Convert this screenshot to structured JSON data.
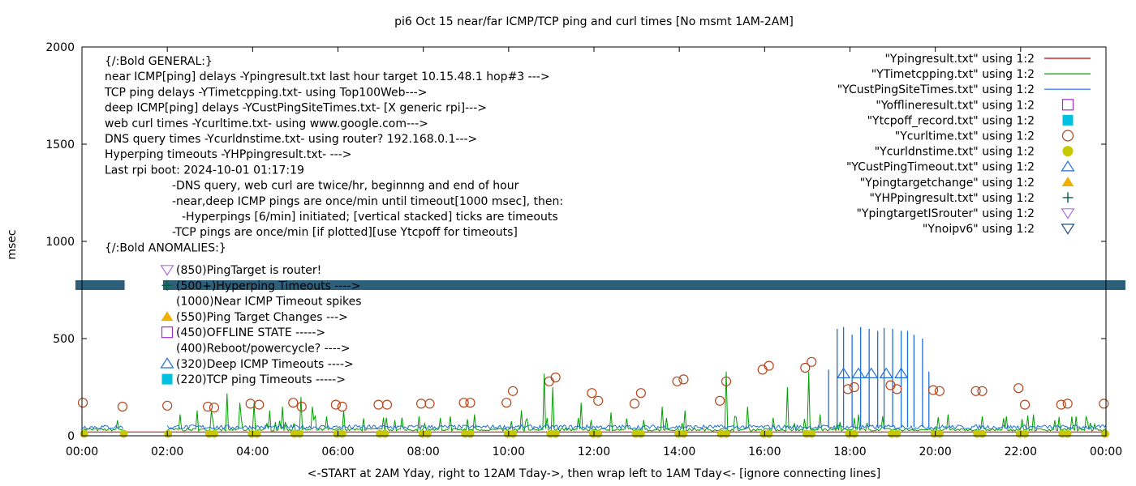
{
  "chart_data": {
    "type": "line",
    "title": "pi6 Oct 15  near/far ICMP/TCP ping and curl times [No msmt 1AM-2AM]",
    "xlabel": "<-START at 2AM Yday, right to 12AM Tday->, then wrap left to 1AM Tday<- [ignore connecting lines]",
    "ylabel": "msec",
    "xlim": [
      0,
      24
    ],
    "ylim": [
      0,
      2000
    ],
    "x_ticks": [
      {
        "value": 0,
        "label": "00:00"
      },
      {
        "value": 2,
        "label": "02:00"
      },
      {
        "value": 4,
        "label": "04:00"
      },
      {
        "value": 6,
        "label": "06:00"
      },
      {
        "value": 8,
        "label": "08:00"
      },
      {
        "value": 10,
        "label": "10:00"
      },
      {
        "value": 12,
        "label": "12:00"
      },
      {
        "value": 14,
        "label": "14:00"
      },
      {
        "value": 16,
        "label": "16:00"
      },
      {
        "value": 18,
        "label": "18:00"
      },
      {
        "value": 20,
        "label": "20:00"
      },
      {
        "value": 22,
        "label": "22:00"
      },
      {
        "value": 24,
        "label": "00:00"
      }
    ],
    "y_ticks": [
      {
        "value": 0,
        "label": "0"
      },
      {
        "value": 500,
        "label": "500"
      },
      {
        "value": 1000,
        "label": "1000"
      },
      {
        "value": 1500,
        "label": "1500"
      },
      {
        "value": 2000,
        "label": "2000"
      }
    ],
    "grid": false,
    "legend_position": "top-right",
    "legend": [
      {
        "label": "\"Ypingresult.txt\" using 1:2",
        "style": "line",
        "color": "#c00000"
      },
      {
        "label": "\"YTimetcpping.txt\" using 1:2",
        "style": "line",
        "color": "#00a000"
      },
      {
        "label": "\"YCustPingSiteTimes.txt\" using 1:2",
        "style": "line",
        "color": "#1f6fd8"
      },
      {
        "label": "\"Yofflineresult.txt\" using 1:2",
        "style": "open-square",
        "color": "#9b30d0"
      },
      {
        "label": "\"Ytcpoff_record.txt\" using 1:2",
        "style": "filled-square",
        "color": "#00c0e0"
      },
      {
        "label": "\"Ycurltime.txt\" using 1:2",
        "style": "open-circle",
        "color": "#b5451b"
      },
      {
        "label": "\"Ycurldnstime.txt\" using 1:2",
        "style": "filled-circle",
        "color": "#c8c800"
      },
      {
        "label": "\"YCustPingTimeout.txt\" using 1:2",
        "style": "open-triangle-up",
        "color": "#1f6fd8"
      },
      {
        "label": "\"Ypingtargetchange\" using 1:2",
        "style": "filled-triangle-up",
        "color": "#f0b000"
      },
      {
        "label": "\"YHPpingresult.txt\" using 1:2",
        "style": "plus",
        "color": "#006040"
      },
      {
        "label": "\"YpingtargetISrouter\" using 1:2",
        "style": "open-triangle-down",
        "color": "#b070e0"
      },
      {
        "label": "\"Ynoipv6\" using 1:2",
        "style": "open-triangle-down",
        "color": "#1a4a7a"
      }
    ],
    "annotation_lines": [
      "{/:Bold GENERAL:}",
      "near ICMP[ping] delays -Ypingresult.txt last hour target 10.15.48.1 hop#3 --->",
      "TCP ping delays -YTimetcpping.txt- using Top100Web--->",
      "deep ICMP[ping] delays -YCustPingSiteTimes.txt- [X generic rpi]--->",
      "web curl times -Ycurltime.txt- using www.google.com--->",
      "DNS query times -Ycurldnstime.txt- using router? 192.168.0.1--->",
      "Hyperping timeouts -YHPpingresult.txt- --->",
      "Last rpi boot: 2024-10-01 01:17:19",
      "-DNS query, web curl are twice/hr, beginnng and end of hour",
      "-near,deep ICMP pings are once/min until timeout[1000 msec], then:",
      "-Hyperpings [6/min] initiated; [vertical stacked] ticks are timeouts",
      "-TCP pings are once/min [if plotted][use Ytcpoff for timeouts]",
      "{/:Bold ANOMALIES:}"
    ],
    "anomaly_key": [
      {
        "label": "(850)PingTarget is router!",
        "style": "open-triangle-down",
        "color": "#b070e0"
      },
      {
        "label": "(500+)Hyperping Timeouts ---->",
        "style": "plus",
        "color": "#006040"
      },
      {
        "label": "(1000)Near ICMP Timeout spikes",
        "style": "none",
        "color": "#000000"
      },
      {
        "label": "(550)Ping Target Changes --->",
        "style": "filled-triangle-up",
        "color": "#f0b000"
      },
      {
        "label": "(450)OFFLINE STATE ----->",
        "style": "open-square",
        "color": "#9b30d0"
      },
      {
        "label": "(400)Reboot/powercycle? ---->",
        "style": "none",
        "color": "#000000"
      },
      {
        "label": "(320)Deep ICMP Timeouts ---->",
        "style": "open-triangle-up",
        "color": "#1f6fd8"
      },
      {
        "label": "(220)TCP ping Timeouts ----->",
        "style": "filled-square",
        "color": "#00c0e0"
      }
    ],
    "noipv6_band": {
      "y": 775,
      "color": "#2e5f7a",
      "gap_x": [
        1.0,
        1.9
      ]
    },
    "near_icmp": {
      "base": 20,
      "color": "#c00000"
    },
    "deep_icmp": {
      "base": 45,
      "color": "#1f6fd8",
      "spikes": [
        {
          "x": 17.5,
          "y": 340
        },
        {
          "x": 17.7,
          "y": 550
        },
        {
          "x": 17.85,
          "y": 560
        },
        {
          "x": 18.05,
          "y": 520
        },
        {
          "x": 18.25,
          "y": 560
        },
        {
          "x": 18.45,
          "y": 550
        },
        {
          "x": 18.65,
          "y": 540
        },
        {
          "x": 18.8,
          "y": 555
        },
        {
          "x": 19.0,
          "y": 550
        },
        {
          "x": 19.2,
          "y": 540
        },
        {
          "x": 19.35,
          "y": 540
        },
        {
          "x": 19.5,
          "y": 520
        },
        {
          "x": 19.7,
          "y": 500
        },
        {
          "x": 19.85,
          "y": 330
        }
      ]
    },
    "tcp_ping": {
      "base": 30,
      "color": "#00a000",
      "spikes": [
        {
          "x": 0.85,
          "y": 80
        },
        {
          "x": 1.0,
          "y": 70
        },
        {
          "x": 2.3,
          "y": 110
        },
        {
          "x": 2.7,
          "y": 130
        },
        {
          "x": 3.05,
          "y": 130
        },
        {
          "x": 3.4,
          "y": 150
        },
        {
          "x": 3.7,
          "y": 170
        },
        {
          "x": 4.05,
          "y": 170
        },
        {
          "x": 4.4,
          "y": 130
        },
        {
          "x": 4.7,
          "y": 150
        },
        {
          "x": 5.15,
          "y": 200
        },
        {
          "x": 5.4,
          "y": 150
        },
        {
          "x": 5.75,
          "y": 100
        },
        {
          "x": 6.15,
          "y": 130
        },
        {
          "x": 6.6,
          "y": 90
        },
        {
          "x": 7.35,
          "y": 80
        },
        {
          "x": 7.9,
          "y": 100
        },
        {
          "x": 8.65,
          "y": 100
        },
        {
          "x": 9.2,
          "y": 110
        },
        {
          "x": 10.3,
          "y": 130
        },
        {
          "x": 10.85,
          "y": 320
        },
        {
          "x": 11.05,
          "y": 250
        },
        {
          "x": 11.7,
          "y": 170
        },
        {
          "x": 12.4,
          "y": 120
        },
        {
          "x": 13.6,
          "y": 150
        },
        {
          "x": 14.15,
          "y": 130
        },
        {
          "x": 15.1,
          "y": 330
        },
        {
          "x": 15.6,
          "y": 150
        },
        {
          "x": 16.55,
          "y": 250
        },
        {
          "x": 17.05,
          "y": 330
        },
        {
          "x": 17.3,
          "y": 110
        },
        {
          "x": 18.2,
          "y": 110
        },
        {
          "x": 20.3,
          "y": 110
        },
        {
          "x": 21.1,
          "y": 100
        },
        {
          "x": 21.6,
          "y": 90
        },
        {
          "x": 22.3,
          "y": 110
        },
        {
          "x": 22.8,
          "y": 80
        },
        {
          "x": 23.3,
          "y": 100
        },
        {
          "x": 23.75,
          "y": 60
        }
      ]
    },
    "curl_times": [
      {
        "x": 0.02,
        "y": 170
      },
      {
        "x": 0.95,
        "y": 150
      },
      {
        "x": 2.0,
        "y": 155
      },
      {
        "x": 2.95,
        "y": 150
      },
      {
        "x": 3.1,
        "y": 145
      },
      {
        "x": 3.95,
        "y": 165
      },
      {
        "x": 4.15,
        "y": 160
      },
      {
        "x": 4.95,
        "y": 170
      },
      {
        "x": 5.15,
        "y": 150
      },
      {
        "x": 5.95,
        "y": 160
      },
      {
        "x": 6.1,
        "y": 150
      },
      {
        "x": 6.95,
        "y": 160
      },
      {
        "x": 7.15,
        "y": 160
      },
      {
        "x": 7.95,
        "y": 165
      },
      {
        "x": 8.15,
        "y": 165
      },
      {
        "x": 8.95,
        "y": 170
      },
      {
        "x": 9.1,
        "y": 170
      },
      {
        "x": 9.95,
        "y": 170
      },
      {
        "x": 10.1,
        "y": 230
      },
      {
        "x": 10.95,
        "y": 280
      },
      {
        "x": 11.1,
        "y": 300
      },
      {
        "x": 11.95,
        "y": 220
      },
      {
        "x": 12.1,
        "y": 180
      },
      {
        "x": 12.95,
        "y": 165
      },
      {
        "x": 13.1,
        "y": 220
      },
      {
        "x": 13.95,
        "y": 280
      },
      {
        "x": 14.1,
        "y": 290
      },
      {
        "x": 14.95,
        "y": 180
      },
      {
        "x": 15.1,
        "y": 280
      },
      {
        "x": 15.95,
        "y": 340
      },
      {
        "x": 16.1,
        "y": 360
      },
      {
        "x": 16.95,
        "y": 350
      },
      {
        "x": 17.1,
        "y": 380
      },
      {
        "x": 17.95,
        "y": 240
      },
      {
        "x": 18.1,
        "y": 250
      },
      {
        "x": 18.95,
        "y": 260
      },
      {
        "x": 19.1,
        "y": 240
      },
      {
        "x": 19.95,
        "y": 235
      },
      {
        "x": 20.1,
        "y": 230
      },
      {
        "x": 20.95,
        "y": 230
      },
      {
        "x": 21.1,
        "y": 230
      },
      {
        "x": 21.95,
        "y": 245
      },
      {
        "x": 22.1,
        "y": 160
      },
      {
        "x": 22.95,
        "y": 160
      },
      {
        "x": 23.1,
        "y": 165
      },
      {
        "x": 23.95,
        "y": 165
      }
    ],
    "curl_dns_times": [
      {
        "x": 0.05,
        "y": 10
      },
      {
        "x": 0.98,
        "y": 10
      },
      {
        "x": 2.02,
        "y": 10
      },
      {
        "x": 2.98,
        "y": 10
      },
      {
        "x": 3.1,
        "y": 10
      },
      {
        "x": 3.98,
        "y": 10
      },
      {
        "x": 4.1,
        "y": 10
      },
      {
        "x": 4.98,
        "y": 10
      },
      {
        "x": 5.1,
        "y": 10
      },
      {
        "x": 5.98,
        "y": 10
      },
      {
        "x": 6.1,
        "y": 10
      },
      {
        "x": 6.98,
        "y": 10
      },
      {
        "x": 7.1,
        "y": 10
      },
      {
        "x": 7.98,
        "y": 10
      },
      {
        "x": 8.1,
        "y": 10
      },
      {
        "x": 8.98,
        "y": 10
      },
      {
        "x": 9.1,
        "y": 10
      },
      {
        "x": 9.98,
        "y": 10
      },
      {
        "x": 10.1,
        "y": 10
      },
      {
        "x": 10.98,
        "y": 10
      },
      {
        "x": 11.1,
        "y": 10
      },
      {
        "x": 11.98,
        "y": 10
      },
      {
        "x": 12.1,
        "y": 10
      },
      {
        "x": 12.98,
        "y": 10
      },
      {
        "x": 13.1,
        "y": 10
      },
      {
        "x": 13.98,
        "y": 10
      },
      {
        "x": 14.1,
        "y": 10
      },
      {
        "x": 14.98,
        "y": 10
      },
      {
        "x": 15.1,
        "y": 10
      },
      {
        "x": 15.98,
        "y": 10
      },
      {
        "x": 16.1,
        "y": 10
      },
      {
        "x": 16.98,
        "y": 10
      },
      {
        "x": 17.1,
        "y": 10
      },
      {
        "x": 17.98,
        "y": 10
      },
      {
        "x": 18.1,
        "y": 10
      },
      {
        "x": 18.98,
        "y": 10
      },
      {
        "x": 19.1,
        "y": 10
      },
      {
        "x": 19.98,
        "y": 10
      },
      {
        "x": 20.1,
        "y": 10
      },
      {
        "x": 20.98,
        "y": 10
      },
      {
        "x": 21.1,
        "y": 10
      },
      {
        "x": 21.98,
        "y": 10
      },
      {
        "x": 22.1,
        "y": 10
      },
      {
        "x": 22.98,
        "y": 10
      },
      {
        "x": 23.1,
        "y": 10
      },
      {
        "x": 23.98,
        "y": 10
      }
    ],
    "deep_icmp_timeouts": [
      {
        "x": 17.85,
        "y": 320
      },
      {
        "x": 18.2,
        "y": 320
      },
      {
        "x": 18.5,
        "y": 320
      },
      {
        "x": 18.85,
        "y": 320
      },
      {
        "x": 19.2,
        "y": 320
      }
    ]
  }
}
